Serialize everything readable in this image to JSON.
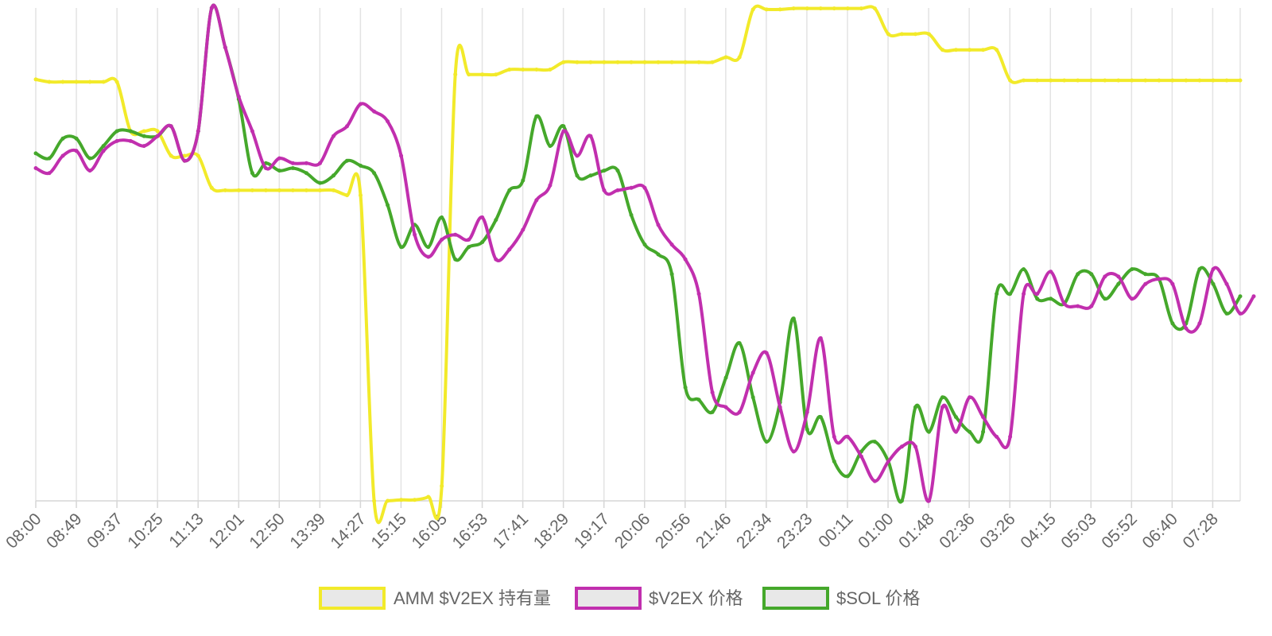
{
  "chart_data": {
    "type": "line",
    "x_tick_labels": [
      "08:00",
      "08:49",
      "09:37",
      "10:25",
      "11:13",
      "12:01",
      "12:50",
      "13:39",
      "14:27",
      "15:15",
      "16:05",
      "16:53",
      "17:41",
      "18:29",
      "19:17",
      "20:06",
      "20:56",
      "21:46",
      "22:34",
      "23:23",
      "00:11",
      "01:00",
      "01:48",
      "02:36",
      "03:26",
      "04:15",
      "05:03",
      "05:52",
      "06:40",
      "07:28"
    ],
    "ylim": [
      0,
      100
    ],
    "grid": true,
    "legend_position": "bottom",
    "series": [
      {
        "name": "AMM $V2EX 持有量",
        "color": "#f2ea2a",
        "points": [
          [
            0,
            85.5
          ],
          [
            1,
            85
          ],
          [
            2,
            85
          ],
          [
            3,
            85
          ],
          [
            4,
            85
          ],
          [
            5,
            85
          ],
          [
            6,
            85
          ],
          [
            7,
            75
          ],
          [
            8,
            75
          ],
          [
            9,
            75
          ],
          [
            10,
            70
          ],
          [
            11,
            70
          ],
          [
            12,
            70
          ],
          [
            13,
            63.5
          ],
          [
            14,
            63
          ],
          [
            15,
            63
          ],
          [
            16,
            63
          ],
          [
            17,
            63
          ],
          [
            18,
            63
          ],
          [
            19,
            63
          ],
          [
            20,
            63
          ],
          [
            21,
            63
          ],
          [
            22,
            63
          ],
          [
            23,
            62
          ],
          [
            24,
            62
          ],
          [
            25,
            0
          ],
          [
            26,
            0
          ],
          [
            27,
            0.2
          ],
          [
            28,
            0.2
          ],
          [
            29,
            0.8
          ],
          [
            30,
            3
          ],
          [
            31,
            86.5
          ],
          [
            32,
            86.5
          ],
          [
            33,
            86.5
          ],
          [
            34,
            86.5
          ],
          [
            35,
            87.5
          ],
          [
            36,
            87.5
          ],
          [
            37,
            87.5
          ],
          [
            38,
            87.5
          ],
          [
            39,
            89
          ],
          [
            40,
            89
          ],
          [
            41,
            89
          ],
          [
            42,
            89
          ],
          [
            43,
            89
          ],
          [
            44,
            89
          ],
          [
            45,
            89
          ],
          [
            46,
            89
          ],
          [
            47,
            89
          ],
          [
            48,
            89
          ],
          [
            49,
            89
          ],
          [
            50,
            89
          ],
          [
            51,
            90
          ],
          [
            52,
            90
          ],
          [
            53,
            99.7
          ],
          [
            54,
            99.7
          ],
          [
            55,
            99.7
          ],
          [
            56,
            99.9
          ],
          [
            57,
            99.9
          ],
          [
            58,
            99.9
          ],
          [
            59,
            99.9
          ],
          [
            60,
            99.9
          ],
          [
            61,
            99.9
          ],
          [
            62,
            99.9
          ],
          [
            63,
            94.7
          ],
          [
            64,
            94.7
          ],
          [
            65,
            94.7
          ],
          [
            66,
            94.7
          ],
          [
            67,
            91.5
          ],
          [
            68,
            91.5
          ],
          [
            69,
            91.5
          ],
          [
            70,
            91.5
          ],
          [
            71,
            91.5
          ],
          [
            72,
            85.3
          ],
          [
            73,
            85.3
          ],
          [
            74,
            85.3
          ],
          [
            75,
            85.3
          ],
          [
            76,
            85.3
          ],
          [
            77,
            85.3
          ],
          [
            78,
            85.3
          ],
          [
            79,
            85.3
          ],
          [
            80,
            85.3
          ],
          [
            81,
            85.3
          ],
          [
            82,
            85.3
          ],
          [
            83,
            85.3
          ],
          [
            84,
            85.3
          ],
          [
            85,
            85.3
          ],
          [
            86,
            85.3
          ],
          [
            87,
            85.3
          ],
          [
            88,
            85.3
          ],
          [
            89,
            85.3
          ]
        ]
      },
      {
        "name": "$V2EX 价格",
        "color": "#c12fae",
        "points": [
          [
            0,
            67.5
          ],
          [
            1,
            66.5
          ],
          [
            2,
            70
          ],
          [
            3,
            71
          ],
          [
            4,
            67
          ],
          [
            5,
            71
          ],
          [
            6,
            73
          ],
          [
            7,
            73
          ],
          [
            8,
            72
          ],
          [
            9,
            74
          ],
          [
            10,
            76
          ],
          [
            11,
            69
          ],
          [
            12,
            75
          ],
          [
            13,
            100
          ],
          [
            14,
            92
          ],
          [
            15,
            82
          ],
          [
            16,
            75
          ],
          [
            17,
            67.5
          ],
          [
            18,
            69.5
          ],
          [
            19,
            68.5
          ],
          [
            20,
            68.5
          ],
          [
            21,
            68.5
          ],
          [
            22,
            74
          ],
          [
            23,
            76
          ],
          [
            24,
            80.5
          ],
          [
            25,
            79
          ],
          [
            26,
            77
          ],
          [
            27,
            70
          ],
          [
            28,
            54
          ],
          [
            29,
            49.5
          ],
          [
            30,
            53
          ],
          [
            31,
            54
          ],
          [
            32,
            53
          ],
          [
            33,
            57.5
          ],
          [
            34,
            49
          ],
          [
            35,
            51
          ],
          [
            36,
            55
          ],
          [
            37,
            61
          ],
          [
            38,
            64
          ],
          [
            39,
            75
          ],
          [
            40,
            70
          ],
          [
            41,
            74
          ],
          [
            42,
            63
          ],
          [
            43,
            63
          ],
          [
            44,
            63.5
          ],
          [
            45,
            63.5
          ],
          [
            46,
            56
          ],
          [
            47,
            52
          ],
          [
            48,
            49
          ],
          [
            49,
            42
          ],
          [
            50,
            22
          ],
          [
            51,
            19
          ],
          [
            52,
            18
          ],
          [
            53,
            26
          ],
          [
            54,
            30
          ],
          [
            55,
            19
          ],
          [
            56,
            10
          ],
          [
            57,
            18
          ],
          [
            58,
            33
          ],
          [
            59,
            13
          ],
          [
            60,
            13
          ],
          [
            61,
            9
          ],
          [
            62,
            4
          ],
          [
            63,
            8
          ],
          [
            64,
            11
          ],
          [
            65,
            11
          ],
          [
            66,
            0
          ],
          [
            67,
            19
          ],
          [
            68,
            14
          ],
          [
            69,
            21
          ],
          [
            70,
            17
          ],
          [
            71,
            13
          ],
          [
            72,
            13
          ],
          [
            73,
            42
          ],
          [
            74,
            42
          ],
          [
            75,
            46.5
          ],
          [
            76,
            40
          ],
          [
            77,
            39.5
          ],
          [
            78,
            39.5
          ],
          [
            79,
            45.5
          ],
          [
            80,
            45.5
          ],
          [
            81,
            41
          ],
          [
            82,
            44
          ],
          [
            83,
            45
          ],
          [
            84,
            44
          ],
          [
            85,
            35
          ],
          [
            86,
            36
          ],
          [
            87,
            47
          ],
          [
            88,
            44
          ],
          [
            89,
            38
          ],
          [
            90,
            41.5
          ]
        ]
      },
      {
        "name": "$SOL 价格",
        "color": "#45a82b",
        "points": [
          [
            0,
            70.5
          ],
          [
            1,
            69.5
          ],
          [
            2,
            73.5
          ],
          [
            3,
            73.5
          ],
          [
            4,
            69.5
          ],
          [
            5,
            72
          ],
          [
            6,
            75
          ],
          [
            7,
            75
          ],
          [
            8,
            74
          ],
          [
            9,
            74
          ],
          [
            10,
            76
          ],
          [
            11,
            69
          ],
          [
            12,
            75
          ],
          [
            13,
            100
          ],
          [
            14,
            92
          ],
          [
            15,
            81.5
          ],
          [
            16,
            66.5
          ],
          [
            17,
            68.5
          ],
          [
            18,
            67
          ],
          [
            19,
            67.5
          ],
          [
            20,
            66.5
          ],
          [
            21,
            64.5
          ],
          [
            22,
            66
          ],
          [
            23,
            69
          ],
          [
            24,
            68
          ],
          [
            25,
            66.5
          ],
          [
            26,
            60
          ],
          [
            27,
            51.5
          ],
          [
            28,
            56
          ],
          [
            29,
            51.5
          ],
          [
            30,
            57.5
          ],
          [
            31,
            49
          ],
          [
            32,
            51.5
          ],
          [
            33,
            52.5
          ],
          [
            34,
            57
          ],
          [
            35,
            63
          ],
          [
            36,
            65
          ],
          [
            37,
            78
          ],
          [
            38,
            72
          ],
          [
            39,
            76
          ],
          [
            40,
            66
          ],
          [
            41,
            66
          ],
          [
            42,
            67
          ],
          [
            43,
            67
          ],
          [
            44,
            58
          ],
          [
            45,
            52
          ],
          [
            46,
            50
          ],
          [
            47,
            46
          ],
          [
            48,
            23
          ],
          [
            49,
            20.5
          ],
          [
            50,
            18
          ],
          [
            51,
            25
          ],
          [
            52,
            32
          ],
          [
            53,
            21
          ],
          [
            54,
            12
          ],
          [
            55,
            20
          ],
          [
            56,
            37
          ],
          [
            57,
            14.5
          ],
          [
            58,
            17
          ],
          [
            59,
            8
          ],
          [
            60,
            5
          ],
          [
            61,
            10
          ],
          [
            62,
            12
          ],
          [
            63,
            8
          ],
          [
            64,
            0
          ],
          [
            65,
            19
          ],
          [
            66,
            14
          ],
          [
            67,
            21
          ],
          [
            68,
            17
          ],
          [
            69,
            14
          ],
          [
            70,
            14
          ],
          [
            71,
            42
          ],
          [
            72,
            42
          ],
          [
            73,
            47
          ],
          [
            74,
            41
          ],
          [
            75,
            41
          ],
          [
            76,
            40
          ],
          [
            77,
            46
          ],
          [
            78,
            46
          ],
          [
            79,
            41
          ],
          [
            80,
            44
          ],
          [
            81,
            47
          ],
          [
            82,
            46
          ],
          [
            83,
            45
          ],
          [
            84,
            36
          ],
          [
            85,
            36
          ],
          [
            86,
            47
          ],
          [
            87,
            44
          ],
          [
            88,
            38
          ],
          [
            89,
            41.5
          ]
        ]
      }
    ]
  }
}
